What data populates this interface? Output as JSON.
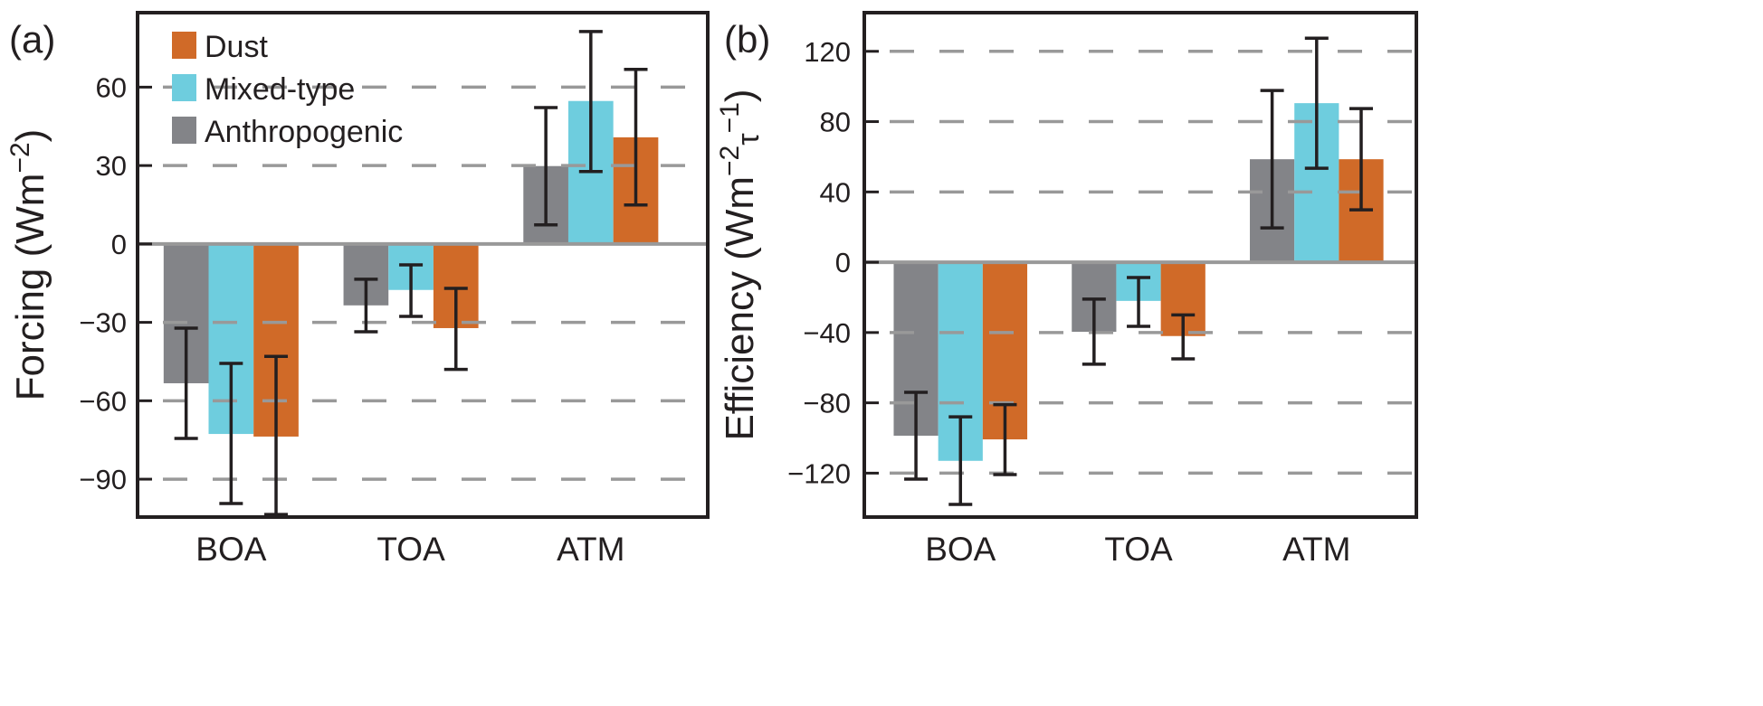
{
  "colors": {
    "Anthropogenic": "#838488",
    "Mixed-type": "#6ecdde",
    "Dust": "#d06a28",
    "grid": "#999999",
    "error": "#231f20"
  },
  "legend": {
    "placement": "top-left",
    "entries": [
      "Dust",
      "Mixed-type",
      "Anthropogenic"
    ]
  },
  "chart_data": [
    {
      "type": "bar",
      "panel_label": "(a)",
      "ylabel": "Forcing (Wm",
      "ylabel_sup": "−2",
      "ylabel_end": ")",
      "categories": [
        "BOA",
        "TOA",
        "ATM"
      ],
      "yticks": [
        60,
        30,
        0,
        -30,
        -60,
        -90
      ],
      "ytick_labels": [
        "60",
        "30",
        "0",
        "−30",
        "−60",
        "−90"
      ],
      "ylim": [
        -104.5,
        88.5
      ],
      "grid": "dashed horizontal",
      "series": [
        {
          "name": "Anthropogenic",
          "values": [
            -53.3,
            -23.5,
            29.8
          ],
          "err_low": [
            -74.4,
            -33.6,
            7.3
          ],
          "err_high": [
            -32.2,
            -13.5,
            52.2
          ]
        },
        {
          "name": "Mixed-type",
          "values": [
            -72.7,
            -17.6,
            54.7
          ],
          "err_low": [
            -99.3,
            -27.7,
            27.7
          ],
          "err_high": [
            -45.7,
            -8.0,
            81.3
          ]
        },
        {
          "name": "Dust",
          "values": [
            -73.7,
            -32.2,
            40.8
          ],
          "err_low": [
            -103.5,
            -48.0,
            14.9
          ],
          "err_high": [
            -43.0,
            -17.0,
            66.8
          ]
        }
      ]
    },
    {
      "type": "bar",
      "panel_label": "(b)",
      "ylabel": "Efficiency (Wm",
      "ylabel_sup": "−2",
      "ylabel_mid": "τ",
      "ylabel_sup2": "−1",
      "ylabel_end": ")",
      "categories": [
        "BOA",
        "TOA",
        "ATM"
      ],
      "yticks": [
        120,
        80,
        40,
        0,
        -40,
        -80,
        -120
      ],
      "ytick_labels": [
        "120",
        "80",
        "40",
        "0",
        "−40",
        "−80",
        "−120"
      ],
      "ylim": [
        -145,
        142
      ],
      "grid": "dashed horizontal",
      "series": [
        {
          "name": "Anthropogenic",
          "values": [
            -98.7,
            -39.6,
            58.6
          ],
          "err_low": [
            -123.4,
            -58.0,
            19.5
          ],
          "err_high": [
            -74.0,
            -21.0,
            97.7
          ]
        },
        {
          "name": "Mixed-type",
          "values": [
            -113.0,
            -22.0,
            90.5
          ],
          "err_low": [
            -137.8,
            -36.5,
            53.5
          ],
          "err_high": [
            -88.0,
            -8.7,
            127.5
          ]
        },
        {
          "name": "Dust",
          "values": [
            -100.8,
            -42.0,
            58.6
          ],
          "err_low": [
            -120.8,
            -55.0,
            29.8
          ],
          "err_high": [
            -81.0,
            -30.0,
            87.4
          ]
        }
      ]
    }
  ]
}
